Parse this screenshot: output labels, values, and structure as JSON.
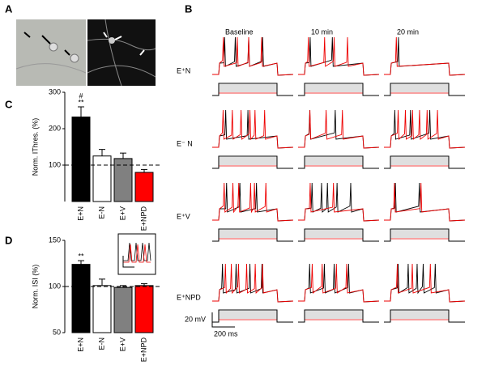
{
  "panels": {
    "a": "A",
    "b": "B",
    "c": "C",
    "d": "D"
  },
  "traces": {
    "columns": [
      "Baseline",
      "10 min",
      "20 min"
    ],
    "rows": [
      "E⁺N",
      "E⁻ N",
      "E⁺V",
      "E⁺NPD"
    ],
    "scale_voltage": "20 mV",
    "scale_time": "200 ms"
  },
  "chart_data": [
    {
      "type": "bar",
      "ylabel": "Norm. IThres. (%)",
      "categories": [
        "E+N",
        "E-N",
        "E+V",
        "E+NPD"
      ],
      "values": [
        232,
        125,
        118,
        80
      ],
      "errors": [
        28,
        18,
        15,
        8
      ],
      "colors": [
        "#000000",
        "#ffffff",
        "#808080",
        "#ff0000"
      ],
      "ylim": [
        0,
        300
      ],
      "yticks": [
        100,
        200,
        300
      ],
      "reference_line": 100,
      "annotations": [
        "#",
        "**"
      ]
    },
    {
      "type": "bar",
      "ylabel": "Norm. ISI (%)",
      "categories": [
        "E+N",
        "E-N",
        "E+V",
        "E+NPD"
      ],
      "values": [
        124,
        101,
        99,
        101
      ],
      "errors": [
        4,
        7,
        2,
        2
      ],
      "colors": [
        "#000000",
        "#ffffff",
        "#808080",
        "#ff0000"
      ],
      "ylim": [
        50,
        150
      ],
      "yticks": [
        50,
        100,
        150
      ],
      "reference_line": 100,
      "annotations": [
        "**"
      ]
    }
  ]
}
